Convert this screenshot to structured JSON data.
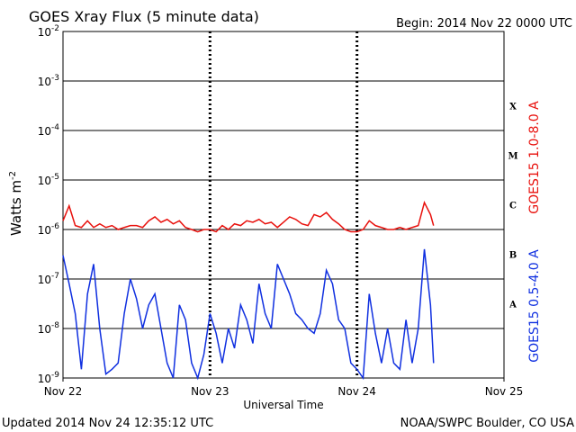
{
  "chart_data": {
    "type": "line",
    "title": "GOES Xray Flux (5 minute data)",
    "subtitle": "Begin:  2014 Nov 22 0000 UTC",
    "x_label": "Universal Time",
    "y_label": "Watts m",
    "y_label_sup": "-2",
    "footer_left": "Updated 2014 Nov 24 12:35:12 UTC",
    "footer_right": "NOAA/SWPC Boulder, CO USA",
    "log_y": true,
    "grid": true,
    "xlim": [
      0,
      72
    ],
    "xticks": [
      {
        "value": 0,
        "label": "Nov 22"
      },
      {
        "value": 24,
        "label": "Nov 23"
      },
      {
        "value": 48,
        "label": "Nov 24"
      },
      {
        "value": 72,
        "label": "Nov 25"
      }
    ],
    "ylim": [
      1e-09,
      0.01
    ],
    "yticks": [
      {
        "value": 0.01,
        "label": "10",
        "sup": "-2"
      },
      {
        "value": 0.001,
        "label": "10",
        "sup": "-3"
      },
      {
        "value": 0.0001,
        "label": "10",
        "sup": "-4"
      },
      {
        "value": 1e-05,
        "label": "10",
        "sup": "-5"
      },
      {
        "value": 1e-06,
        "label": "10",
        "sup": "-6"
      },
      {
        "value": 1e-07,
        "label": "10",
        "sup": "-7"
      },
      {
        "value": 1e-08,
        "label": "10",
        "sup": "-8"
      },
      {
        "value": 1e-09,
        "label": "10",
        "sup": "-9"
      }
    ],
    "classes": [
      {
        "label": "X",
        "value": 0.0001
      },
      {
        "label": "M",
        "value": 1e-05
      },
      {
        "label": "C",
        "value": 1e-06
      },
      {
        "label": "B",
        "value": 1e-07
      },
      {
        "label": "A",
        "value": 1e-08
      }
    ],
    "x": [
      0,
      1,
      2,
      3,
      4,
      5,
      6,
      7,
      8,
      9,
      10,
      11,
      12,
      13,
      14,
      15,
      16,
      17,
      18,
      19,
      20,
      21,
      22,
      23,
      24,
      25,
      26,
      27,
      28,
      29,
      30,
      31,
      32,
      33,
      34,
      35,
      36,
      37,
      38,
      39,
      40,
      41,
      42,
      43,
      44,
      45,
      46,
      47,
      48,
      49,
      50,
      51,
      52,
      53,
      54,
      55,
      56,
      57,
      58,
      59,
      60,
      60.5
    ],
    "series": [
      {
        "name": "GOES15 1.0-8.0 A",
        "color": "#e8100c",
        "values": [
          1.5e-06,
          3e-06,
          1.2e-06,
          1.1e-06,
          1.5e-06,
          1.1e-06,
          1.3e-06,
          1.1e-06,
          1.2e-06,
          1e-06,
          1.1e-06,
          1.2e-06,
          1.2e-06,
          1.1e-06,
          1.5e-06,
          1.8e-06,
          1.4e-06,
          1.6e-06,
          1.3e-06,
          1.5e-06,
          1.1e-06,
          1e-06,
          9e-07,
          1e-06,
          1e-06,
          9e-07,
          1.2e-06,
          1e-06,
          1.3e-06,
          1.2e-06,
          1.5e-06,
          1.4e-06,
          1.6e-06,
          1.3e-06,
          1.4e-06,
          1.1e-06,
          1.4e-06,
          1.8e-06,
          1.6e-06,
          1.3e-06,
          1.2e-06,
          2e-06,
          1.8e-06,
          2.2e-06,
          1.6e-06,
          1.3e-06,
          1e-06,
          9e-07,
          9e-07,
          1e-06,
          1.5e-06,
          1.2e-06,
          1.1e-06,
          1e-06,
          1e-06,
          1.1e-06,
          1e-06,
          1.1e-06,
          1.2e-06,
          3.5e-06,
          2e-06,
          1.2e-06
        ]
      },
      {
        "name": "GOES15 0.5-4.0 A",
        "color": "#1030e0",
        "values": [
          3e-07,
          8e-08,
          2e-08,
          1.5e-09,
          5e-08,
          2e-07,
          1e-08,
          1.2e-09,
          1.5e-09,
          2e-09,
          2e-08,
          1e-07,
          4e-08,
          1e-08,
          3e-08,
          5e-08,
          1e-08,
          2e-09,
          1e-09,
          3e-08,
          1.5e-08,
          2e-09,
          1e-09,
          3e-09,
          2e-08,
          8e-09,
          2e-09,
          1e-08,
          4e-09,
          3e-08,
          1.5e-08,
          5e-09,
          8e-08,
          2e-08,
          1e-08,
          2e-07,
          1e-07,
          5e-08,
          2e-08,
          1.5e-08,
          1e-08,
          8e-09,
          2e-08,
          1.5e-07,
          8e-08,
          1.5e-08,
          1e-08,
          2e-09,
          1.5e-09,
          1e-09,
          5e-08,
          8e-09,
          2e-09,
          1e-08,
          2e-09,
          1.5e-09,
          1.5e-08,
          2e-09,
          1e-08,
          4e-07,
          3e-08,
          2e-09
        ]
      }
    ]
  }
}
